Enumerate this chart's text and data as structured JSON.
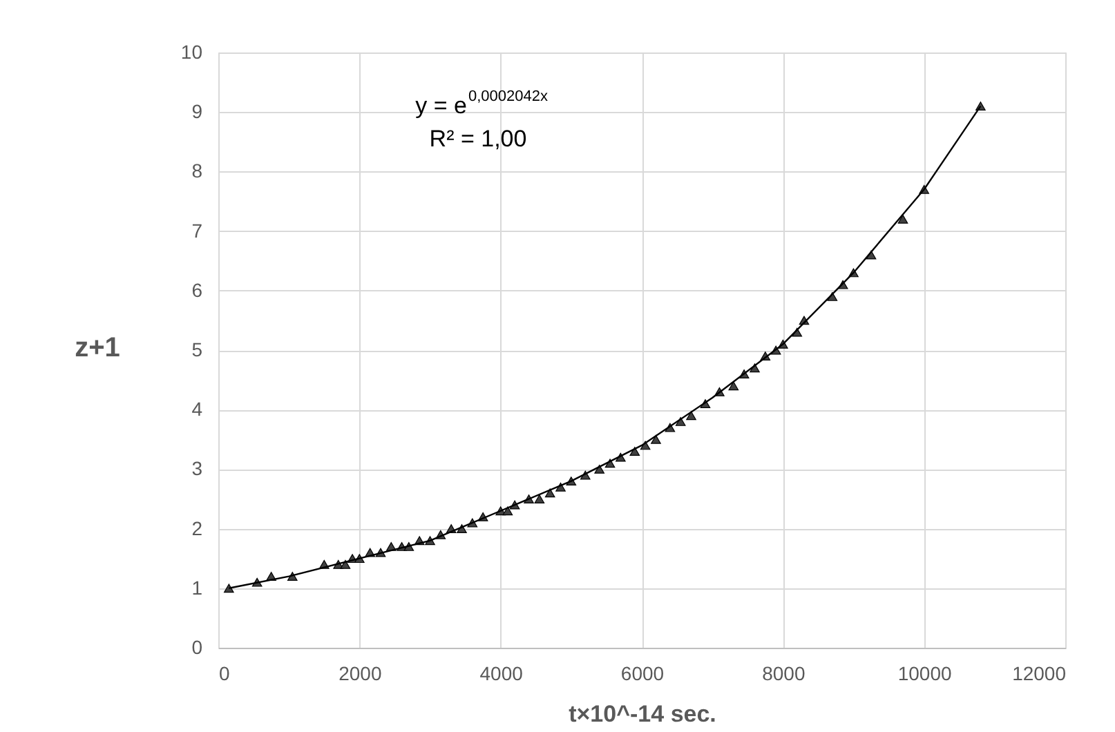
{
  "chart_data": {
    "type": "scatter",
    "xlabel": "t×10^-14 sec.",
    "ylabel": "z+1",
    "xlim": [
      0,
      12000
    ],
    "xticks": [
      0,
      2000,
      4000,
      6000,
      8000,
      10000,
      12000
    ],
    "ylim": [
      0,
      10
    ],
    "yticks": [
      0,
      1,
      2,
      3,
      4,
      5,
      6,
      7,
      8,
      9,
      10
    ],
    "grid": true,
    "marker": "triangle",
    "annotations": [
      "y = e$^{0,0002042x}$",
      "R² = 1,00"
    ],
    "series": [
      {
        "color": "#404040",
        "x": [
          150,
          550,
          750,
          1050,
          1500,
          1700,
          1800,
          1900,
          2000,
          2150,
          2300,
          2450,
          2600,
          2700,
          2850,
          3000,
          3150,
          3300,
          3450,
          3600,
          3750,
          4000,
          4100,
          4200,
          4400,
          4550,
          4700,
          4850,
          5000,
          5200,
          5400,
          5550,
          5700,
          5900,
          6050,
          6200,
          6400,
          6550,
          6700,
          6900,
          7100,
          7300,
          7450,
          7600,
          7750,
          7900,
          8000,
          8200,
          8300,
          8700,
          8850,
          9000,
          9250,
          9700,
          10000,
          10800
        ],
        "values": [
          1.0,
          1.1,
          1.2,
          1.2,
          1.4,
          1.4,
          1.4,
          1.5,
          1.5,
          1.6,
          1.6,
          1.7,
          1.7,
          1.7,
          1.8,
          1.8,
          1.9,
          2.0,
          2.0,
          2.1,
          2.2,
          2.3,
          2.3,
          2.4,
          2.5,
          2.5,
          2.6,
          2.7,
          2.8,
          2.9,
          3.0,
          3.1,
          3.2,
          3.3,
          3.4,
          3.5,
          3.7,
          3.8,
          3.9,
          4.1,
          4.3,
          4.4,
          4.6,
          4.7,
          4.9,
          5.0,
          5.1,
          5.3,
          5.5,
          5.9,
          6.1,
          6.3,
          6.6,
          7.2,
          7.7,
          9.1
        ]
      },
      {
        "type": "line",
        "color": "#000000",
        "line_style": "solid",
        "marker": "none",
        "x": [
          150,
          1000,
          2000,
          3000,
          4000,
          5000,
          6000,
          7000,
          8000,
          9000,
          10000,
          10800
        ],
        "values": [
          1.0,
          1.2,
          1.5,
          1.8,
          2.3,
          2.8,
          3.4,
          4.2,
          5.1,
          6.3,
          7.7,
          9.1
        ]
      }
    ]
  }
}
